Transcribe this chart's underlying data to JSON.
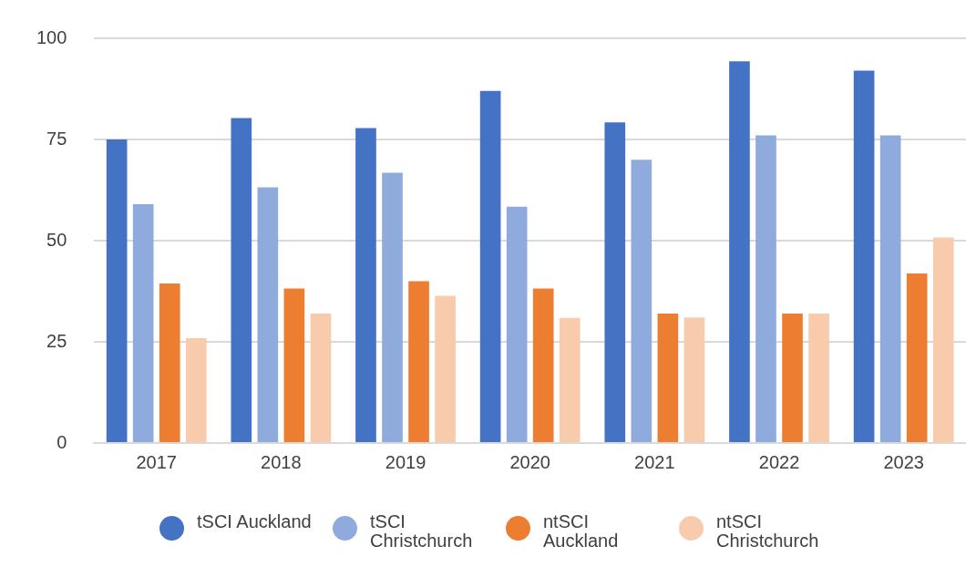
{
  "chart_data": {
    "type": "bar",
    "categories": [
      "2017",
      "2018",
      "2019",
      "2020",
      "2021",
      "2022",
      "2023"
    ],
    "series": [
      {
        "name": "tSCI Auckland",
        "color": "#4472c4",
        "values": [
          75,
          80.3,
          77.8,
          87,
          79.2,
          94.3,
          92
        ]
      },
      {
        "name": "tSCI Christchurch",
        "color": "#8faadc",
        "values": [
          59,
          63.2,
          66.8,
          58.4,
          70,
          76,
          76
        ]
      },
      {
        "name": "ntSCI Auckland",
        "color": "#ed7d31",
        "values": [
          39.4,
          38.2,
          40,
          38.2,
          32,
          32,
          41.9
        ]
      },
      {
        "name": "ntSCI Christchurch",
        "color": "#f8cbad",
        "values": [
          25.9,
          32,
          36.4,
          30.9,
          31,
          32,
          50.8
        ]
      }
    ],
    "ylim": [
      0,
      100
    ],
    "yticks": [
      0,
      25,
      50,
      75,
      100
    ],
    "grid": "y",
    "legend": "bottom"
  }
}
